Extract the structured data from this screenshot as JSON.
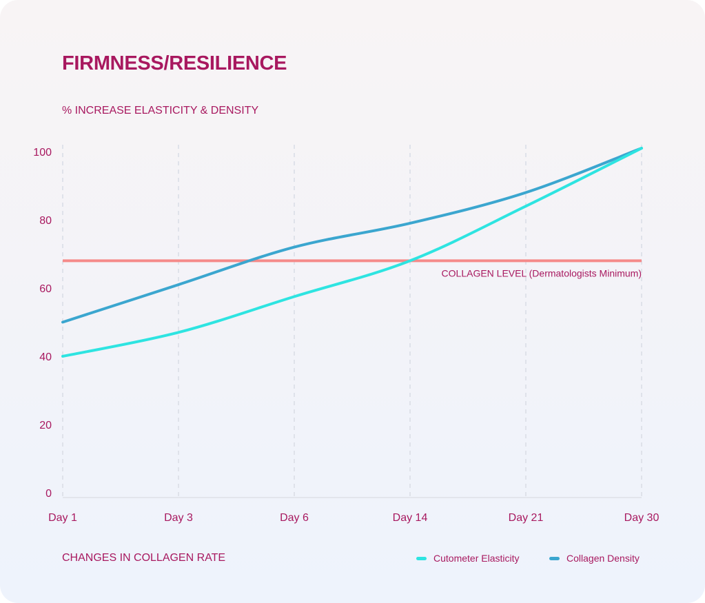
{
  "title": "FIRMNESS/RESILIENCE",
  "chart_data": {
    "type": "line",
    "title": "FIRMNESS/RESILIENCE",
    "ylabel": "% INCREASE ELASTICITY & DENSITY",
    "xlabel": "CHANGES IN COLLAGEN RATE",
    "categories": [
      "Day 1",
      "Day 3",
      "Day 6",
      "Day 14",
      "Day 21",
      "Day 30"
    ],
    "ylim": [
      0,
      100
    ],
    "yticks": [
      "0",
      "20",
      "40",
      "60",
      "80",
      "100"
    ],
    "grid": "vertical dashed",
    "legend_position": "bottom-right",
    "series": [
      {
        "name": "Cutometer Elasticity",
        "color": "#2ee4e1",
        "values": [
          40,
          47,
          57.5,
          68,
          84,
          101
        ]
      },
      {
        "name": "Collagen Density",
        "color": "#3ba6cf",
        "values": [
          50,
          61,
          72,
          79,
          88,
          101
        ]
      }
    ],
    "reference_line": {
      "label": "COLLAGEN LEVEL (Dermatologists Minimum)",
      "value": 68,
      "color": "#f58a8a"
    }
  }
}
